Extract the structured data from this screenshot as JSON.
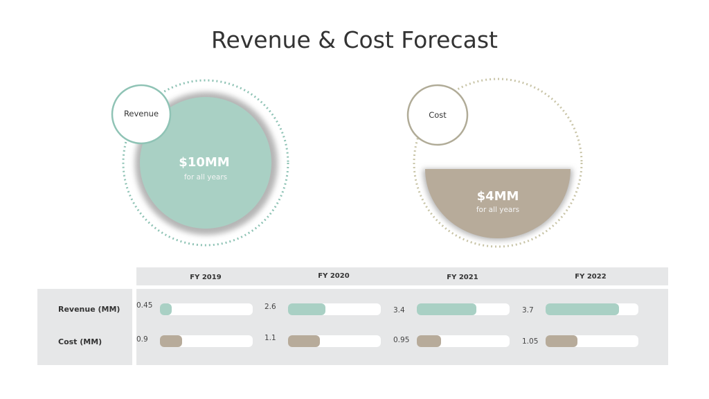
{
  "title": "Revenue & Cost Forecast",
  "colors": {
    "revenue": "#a9d0c4",
    "cost": "#b7ab9a",
    "revenue_border": "#8fc3b5",
    "cost_border": "#b0ab97",
    "panel": "#e6e7e8"
  },
  "summary": {
    "revenue": {
      "label": "Revenue",
      "amount": "$10MM",
      "note": "for all years"
    },
    "cost": {
      "label": "Cost",
      "amount": "$4MM",
      "note": "for all years"
    }
  },
  "chart_data": {
    "type": "bar",
    "categories": [
      "FY 2019",
      "FY 2020",
      "FY 2021",
      "FY 2022"
    ],
    "series": [
      {
        "name": "Revenue (MM)",
        "values": [
          0.45,
          2.6,
          3.4,
          3.7
        ],
        "labels": [
          "0.45",
          "2.6",
          "3.4",
          "3.7"
        ],
        "fill_fraction": [
          0.13,
          0.4,
          0.64,
          0.79
        ],
        "color": "#a9d0c4"
      },
      {
        "name": "Cost (MM)",
        "values": [
          0.9,
          1.1,
          0.95,
          1.05
        ],
        "labels": [
          "0.9",
          "1.1",
          "0.95",
          "1.05"
        ],
        "fill_fraction": [
          0.24,
          0.34,
          0.26,
          0.34
        ],
        "color": "#b7ab9a"
      }
    ]
  }
}
